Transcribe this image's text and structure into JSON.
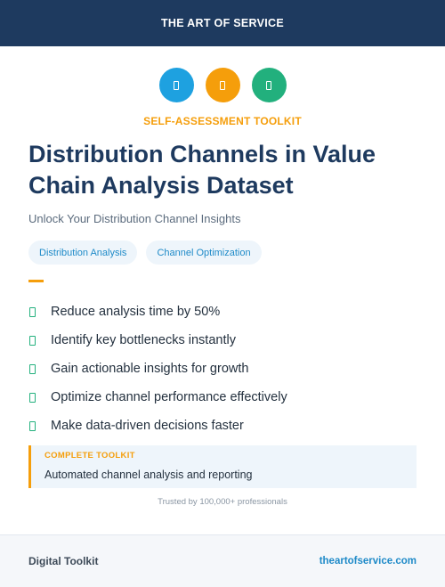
{
  "header": {
    "brand": "THE ART OF SERVICE"
  },
  "icons": [
    {
      "name": "document-icon",
      "color": "#1ea1e0"
    },
    {
      "name": "document-icon",
      "color": "#f59e0b"
    },
    {
      "name": "document-icon",
      "color": "#22b07d"
    }
  ],
  "kicker": "SELF-ASSESSMENT TOOLKIT",
  "title": "Distribution Channels in Value Chain Analysis Dataset",
  "subtitle": "Unlock Your Distribution Channel Insights",
  "tags": [
    "Distribution Analysis",
    "Channel Optimization"
  ],
  "benefits": [
    "Reduce analysis time by 50%",
    "Identify key bottlenecks instantly",
    "Gain actionable insights for growth",
    "Optimize channel performance effectively",
    "Make data-driven decisions faster"
  ],
  "callout": {
    "label": "COMPLETE TOOLKIT",
    "description": "Automated channel analysis and reporting"
  },
  "trusted": "Trusted by 100,000+ professionals",
  "footer": {
    "left": "Digital Toolkit",
    "right": "theartofservice.com"
  }
}
